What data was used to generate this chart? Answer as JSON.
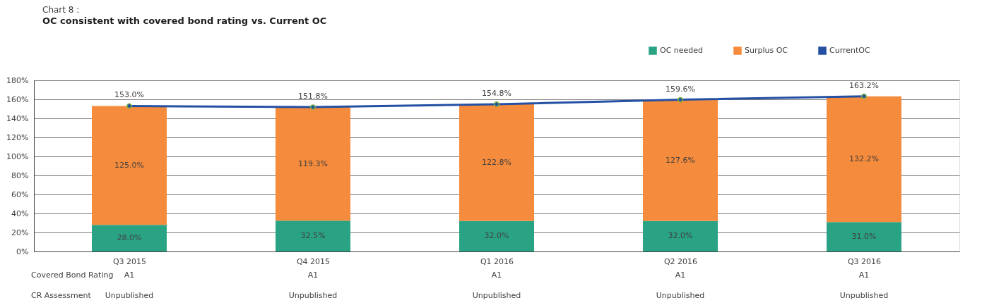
{
  "chart_data": {
    "type": "bar",
    "title": "Chart 8 :",
    "subtitle": "OC consistent with covered bond rating  vs. Current OC",
    "categories": [
      "Q3 2015",
      "Q4 2015",
      "Q1 2016",
      "Q2 2016",
      "Q3 2016"
    ],
    "stacked": true,
    "series": [
      {
        "name": "OC needed",
        "color": "#2aa384",
        "values": [
          28.0,
          32.5,
          32.0,
          32.0,
          31.0
        ],
        "value_labels": [
          "28.0%",
          "32.5%",
          "32.0%",
          "32.0%",
          "31.0%"
        ]
      },
      {
        "name": "Surplus OC",
        "color": "#f58b3c",
        "values": [
          125.0,
          119.3,
          122.8,
          127.6,
          132.2
        ],
        "value_labels": [
          "125.0%",
          "119.3%",
          "122.8%",
          "127.6%",
          "132.2%"
        ]
      },
      {
        "name": "CurrentOC",
        "type": "line",
        "color": "#2450a4",
        "marker": "circle",
        "values": [
          153.0,
          151.8,
          154.8,
          159.6,
          163.2
        ],
        "value_labels": [
          "153.0%",
          "151.8%",
          "154.8%",
          "159.6%",
          "163.2%"
        ]
      }
    ],
    "ylim": [
      0,
      180
    ],
    "yticks": [
      {
        "value": 0,
        "label": "0%"
      },
      {
        "value": 20,
        "label": "20%"
      },
      {
        "value": 40,
        "label": "40%"
      },
      {
        "value": 60,
        "label": "60%"
      },
      {
        "value": 80,
        "label": "80%"
      },
      {
        "value": 100,
        "label": "100%"
      },
      {
        "value": 120,
        "label": "120%"
      },
      {
        "value": 140,
        "label": "140%"
      },
      {
        "value": 160,
        "label": "160%"
      },
      {
        "value": 180,
        "label": "180%"
      }
    ],
    "grid": "y",
    "legend": "top right",
    "annotations": [
      "Covered Bond Rating",
      "A1",
      "A1",
      "A1",
      "A1",
      "A1",
      "CR Assessment",
      "Unpublished",
      "Unpublished",
      "Unpublished",
      "Unpublished",
      "Unpublished"
    ]
  }
}
